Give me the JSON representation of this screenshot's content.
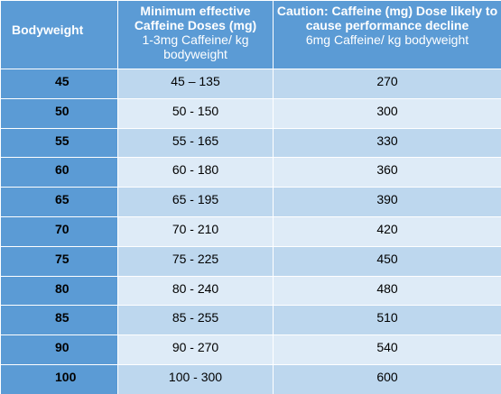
{
  "headers": {
    "bodyweight": "Bodyweight",
    "min_title": "Minimum effective Caffeine Doses (mg)",
    "min_sub": "1-3mg Caffeine/ kg bodyweight",
    "caution_title": "Caution: Caffeine (mg) Dose likely to cause performance decline",
    "caution_sub": "6mg Caffeine/ kg bodyweight"
  },
  "rows": [
    {
      "bodyweight": "45",
      "min_dose": "45 – 135",
      "caution_dose": "270"
    },
    {
      "bodyweight": "50",
      "min_dose": "50 - 150",
      "caution_dose": "300"
    },
    {
      "bodyweight": "55",
      "min_dose": "55 - 165",
      "caution_dose": "330"
    },
    {
      "bodyweight": "60",
      "min_dose": "60 - 180",
      "caution_dose": "360"
    },
    {
      "bodyweight": "65",
      "min_dose": "65 - 195",
      "caution_dose": "390"
    },
    {
      "bodyweight": "70",
      "min_dose": "70 - 210",
      "caution_dose": "420"
    },
    {
      "bodyweight": "75",
      "min_dose": "75 - 225",
      "caution_dose": "450"
    },
    {
      "bodyweight": "80",
      "min_dose": "80 - 240",
      "caution_dose": "480"
    },
    {
      "bodyweight": "85",
      "min_dose": "85 - 255",
      "caution_dose": "510"
    },
    {
      "bodyweight": "90",
      "min_dose": "90 - 270",
      "caution_dose": "540"
    },
    {
      "bodyweight": "100",
      "min_dose": "100 - 300",
      "caution_dose": "600"
    }
  ],
  "colors": {
    "header": "#5b9bd5",
    "row_dark": "#bdd7ee",
    "row_light": "#deebf7"
  }
}
